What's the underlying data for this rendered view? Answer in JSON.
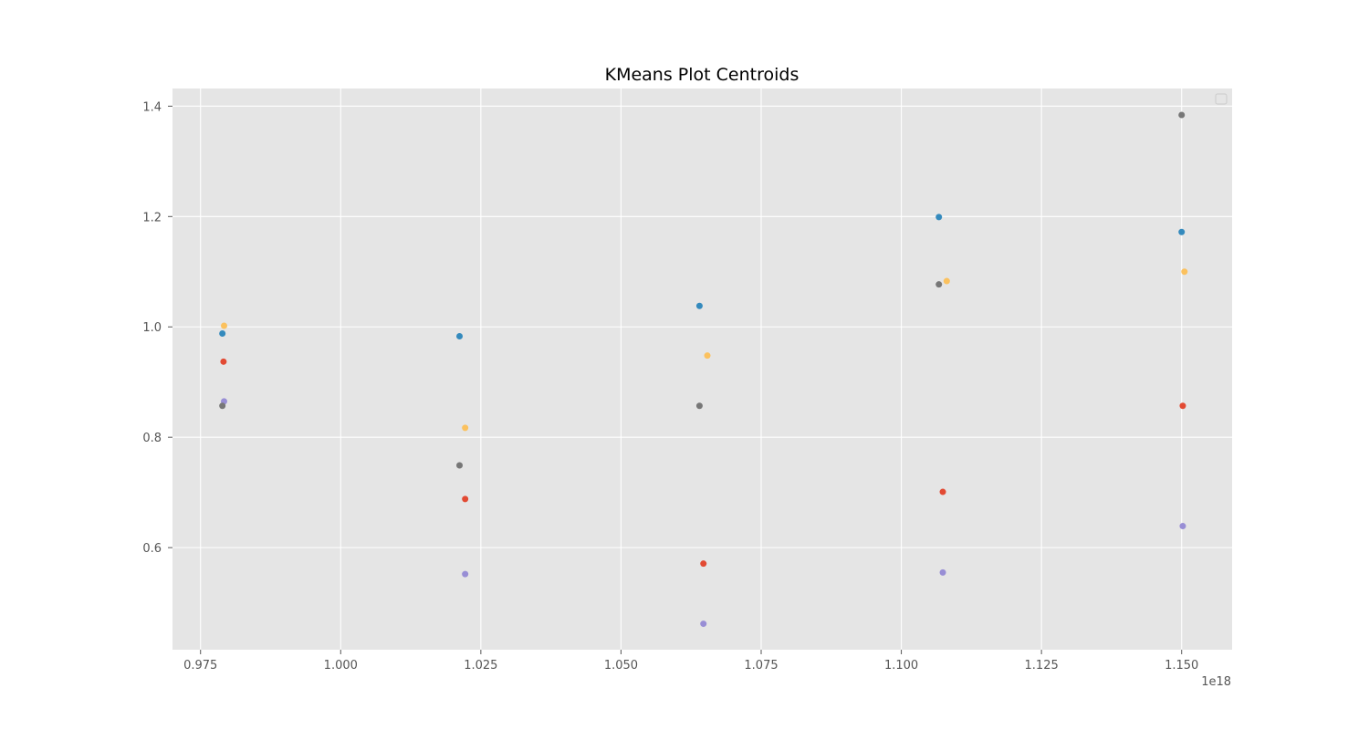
{
  "chart_data": {
    "type": "scatter",
    "title": "KMeans Plot Centroids",
    "xlabel": "",
    "ylabel": "",
    "x_offset_label": "1e18",
    "xlim": [
      0.97,
      1.159
    ],
    "ylim": [
      0.415,
      1.432
    ],
    "x_ticks": [
      0.975,
      1.0,
      1.025,
      1.05,
      1.075,
      1.1,
      1.125,
      1.15
    ],
    "x_tick_labels": [
      "0.975",
      "1.000",
      "1.025",
      "1.050",
      "1.075",
      "1.100",
      "1.125",
      "1.150"
    ],
    "y_ticks": [
      0.6,
      0.8,
      1.0,
      1.2,
      1.4
    ],
    "y_tick_labels": [
      "0.6",
      "0.8",
      "1.0",
      "1.2",
      "1.4"
    ],
    "grid": true,
    "legend": "top-right (empty)",
    "background": "#e5e5e5",
    "series": [
      {
        "color": "#e24a33",
        "points": [
          {
            "x": 0.9791,
            "y": 0.937
          },
          {
            "x": 1.0222,
            "y": 0.688
          },
          {
            "x": 1.0647,
            "y": 0.571
          },
          {
            "x": 1.1074,
            "y": 0.701
          },
          {
            "x": 1.1502,
            "y": 0.857
          }
        ]
      },
      {
        "color": "#348abd",
        "points": [
          {
            "x": 0.9789,
            "y": 0.988
          },
          {
            "x": 1.0212,
            "y": 0.983
          },
          {
            "x": 1.064,
            "y": 1.038
          },
          {
            "x": 1.1067,
            "y": 1.199
          },
          {
            "x": 1.15,
            "y": 1.172
          }
        ]
      },
      {
        "color": "#988ed5",
        "points": [
          {
            "x": 0.9792,
            "y": 0.865
          },
          {
            "x": 1.0222,
            "y": 0.552
          },
          {
            "x": 1.0647,
            "y": 0.462
          },
          {
            "x": 1.1074,
            "y": 0.555
          },
          {
            "x": 1.1502,
            "y": 0.639
          }
        ]
      },
      {
        "color": "#777777",
        "points": [
          {
            "x": 0.9789,
            "y": 0.857
          },
          {
            "x": 1.0212,
            "y": 0.749
          },
          {
            "x": 1.064,
            "y": 0.857
          },
          {
            "x": 1.1067,
            "y": 1.077
          },
          {
            "x": 1.15,
            "y": 1.384
          }
        ]
      },
      {
        "color": "#fbc15e",
        "points": [
          {
            "x": 0.9792,
            "y": 1.002
          },
          {
            "x": 1.0222,
            "y": 0.817
          },
          {
            "x": 1.0654,
            "y": 0.948
          },
          {
            "x": 1.1081,
            "y": 1.083
          },
          {
            "x": 1.1505,
            "y": 1.1
          }
        ]
      }
    ]
  }
}
